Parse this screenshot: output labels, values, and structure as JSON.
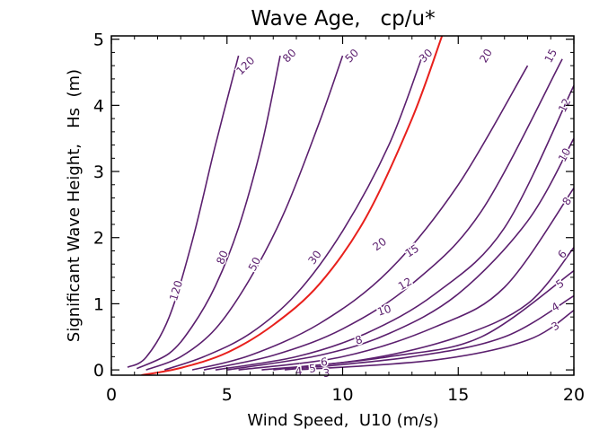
{
  "chart_data": {
    "type": "line",
    "title": "Wave Age,   cp/u*",
    "xlabel": "Wind Speed,  U10 (m/s)",
    "ylabel": "Significant Wave Height,   Hs  (m)",
    "xlim": [
      0,
      20
    ],
    "ylim": [
      -0.08,
      5.05
    ],
    "xticks": [
      0,
      5,
      10,
      15,
      20
    ],
    "yticks": [
      0,
      1,
      2,
      3,
      4,
      5
    ],
    "grid": false,
    "line_color": "#5b1f6e",
    "highlight_color": "#e8201c",
    "series": [
      {
        "name": "120",
        "x": [
          0.7,
          1.5,
          2.5,
          3.5,
          4.5,
          5.5
        ],
        "y": [
          0.04,
          0.19,
          0.8,
          1.95,
          3.4,
          4.75
        ],
        "label_at": [
          2.8,
          1.2
        ],
        "end_label_at": [
          5.8,
          4.6
        ]
      },
      {
        "name": "80",
        "x": [
          1.1,
          2.5,
          3.5,
          4.5,
          5.5,
          6.5,
          7.3
        ],
        "y": [
          0.02,
          0.25,
          0.66,
          1.27,
          2.15,
          3.4,
          4.75
        ],
        "label_at": [
          4.8,
          1.7
        ],
        "end_label_at": [
          7.7,
          4.75
        ]
      },
      {
        "name": "50",
        "x": [
          1.5,
          3.0,
          4.5,
          6.0,
          7.5,
          9.0,
          10.0
        ],
        "y": [
          0.0,
          0.2,
          0.62,
          1.38,
          2.4,
          3.75,
          4.75
        ],
        "label_at": [
          6.2,
          1.6
        ],
        "end_label_at": [
          10.4,
          4.75
        ]
      },
      {
        "name": "30",
        "x": [
          2.3,
          4.0,
          6.0,
          8.0,
          10.0,
          12.0,
          13.4
        ],
        "y": [
          0.0,
          0.2,
          0.55,
          1.15,
          2.1,
          3.4,
          4.7
        ],
        "label_at": [
          8.8,
          1.7
        ],
        "end_label_at": [
          13.6,
          4.75
        ]
      },
      {
        "name": "red",
        "highlight": true,
        "x": [
          1.3,
          3.0,
          5.0,
          7.0,
          9.0,
          11.0,
          13.0,
          14.3
        ],
        "y": [
          -0.08,
          0.03,
          0.26,
          0.68,
          1.3,
          2.3,
          3.8,
          5.05
        ]
      },
      {
        "name": "20",
        "x": [
          3.5,
          6.0,
          9.0,
          12.0,
          15.0,
          18.0
        ],
        "y": [
          0.0,
          0.22,
          0.7,
          1.5,
          2.8,
          4.6
        ],
        "label_at": [
          11.6,
          1.9
        ],
        "end_label_at": [
          16.2,
          4.75
        ]
      },
      {
        "name": "15",
        "x": [
          4.0,
          7.0,
          10.0,
          13.0,
          16.0,
          19.5
        ],
        "y": [
          0.0,
          0.22,
          0.62,
          1.3,
          2.4,
          4.7
        ],
        "label_at": [
          13.0,
          1.8
        ],
        "end_label_at": [
          19.0,
          4.75
        ]
      },
      {
        "name": "12",
        "x": [
          4.5,
          8.0,
          11.0,
          14.0,
          17.0,
          20.0
        ],
        "y": [
          0.0,
          0.2,
          0.55,
          1.15,
          2.15,
          4.3
        ],
        "label_at": [
          12.7,
          1.3
        ],
        "end_label_at": [
          19.6,
          4.0
        ]
      },
      {
        "name": "10",
        "x": [
          5.0,
          9.0,
          12.0,
          15.0,
          18.0,
          20.0
        ],
        "y": [
          0.0,
          0.22,
          0.55,
          1.15,
          2.25,
          3.5
        ],
        "label_at": [
          11.8,
          0.9
        ],
        "end_label_at": [
          19.6,
          3.25
        ]
      },
      {
        "name": "8",
        "x": [
          5.5,
          10.0,
          14.0,
          17.0,
          20.0
        ],
        "y": [
          0.0,
          0.2,
          0.65,
          1.25,
          2.75
        ],
        "label_at": [
          10.7,
          0.45
        ],
        "end_label_at": [
          19.7,
          2.55
        ]
      },
      {
        "name": "6",
        "x": [
          6.5,
          11.0,
          15.0,
          18.0,
          20.0
        ],
        "y": [
          0.0,
          0.16,
          0.5,
          1.0,
          1.85
        ],
        "label_at": [
          9.2,
          0.12
        ],
        "end_label_at": [
          19.5,
          1.75
        ]
      },
      {
        "name": "5",
        "x": [
          7.0,
          12.0,
          16.0,
          20.0
        ],
        "y": [
          0.0,
          0.2,
          0.5,
          1.5
        ],
        "label_at": [
          8.7,
          0.02
        ],
        "end_label_at": [
          19.4,
          1.3
        ]
      },
      {
        "name": "4",
        "x": [
          7.5,
          13.0,
          17.0,
          20.0
        ],
        "y": [
          0.0,
          0.2,
          0.5,
          1.12
        ],
        "label_at": [
          8.1,
          -0.02
        ],
        "end_label_at": [
          19.2,
          0.95
        ]
      },
      {
        "name": "3",
        "x": [
          8.0,
          14.0,
          18.0,
          20.0
        ],
        "y": [
          0.0,
          0.15,
          0.45,
          0.9
        ],
        "label_at": [
          9.3,
          -0.05
        ],
        "end_label_at": [
          19.2,
          0.66
        ]
      }
    ]
  }
}
